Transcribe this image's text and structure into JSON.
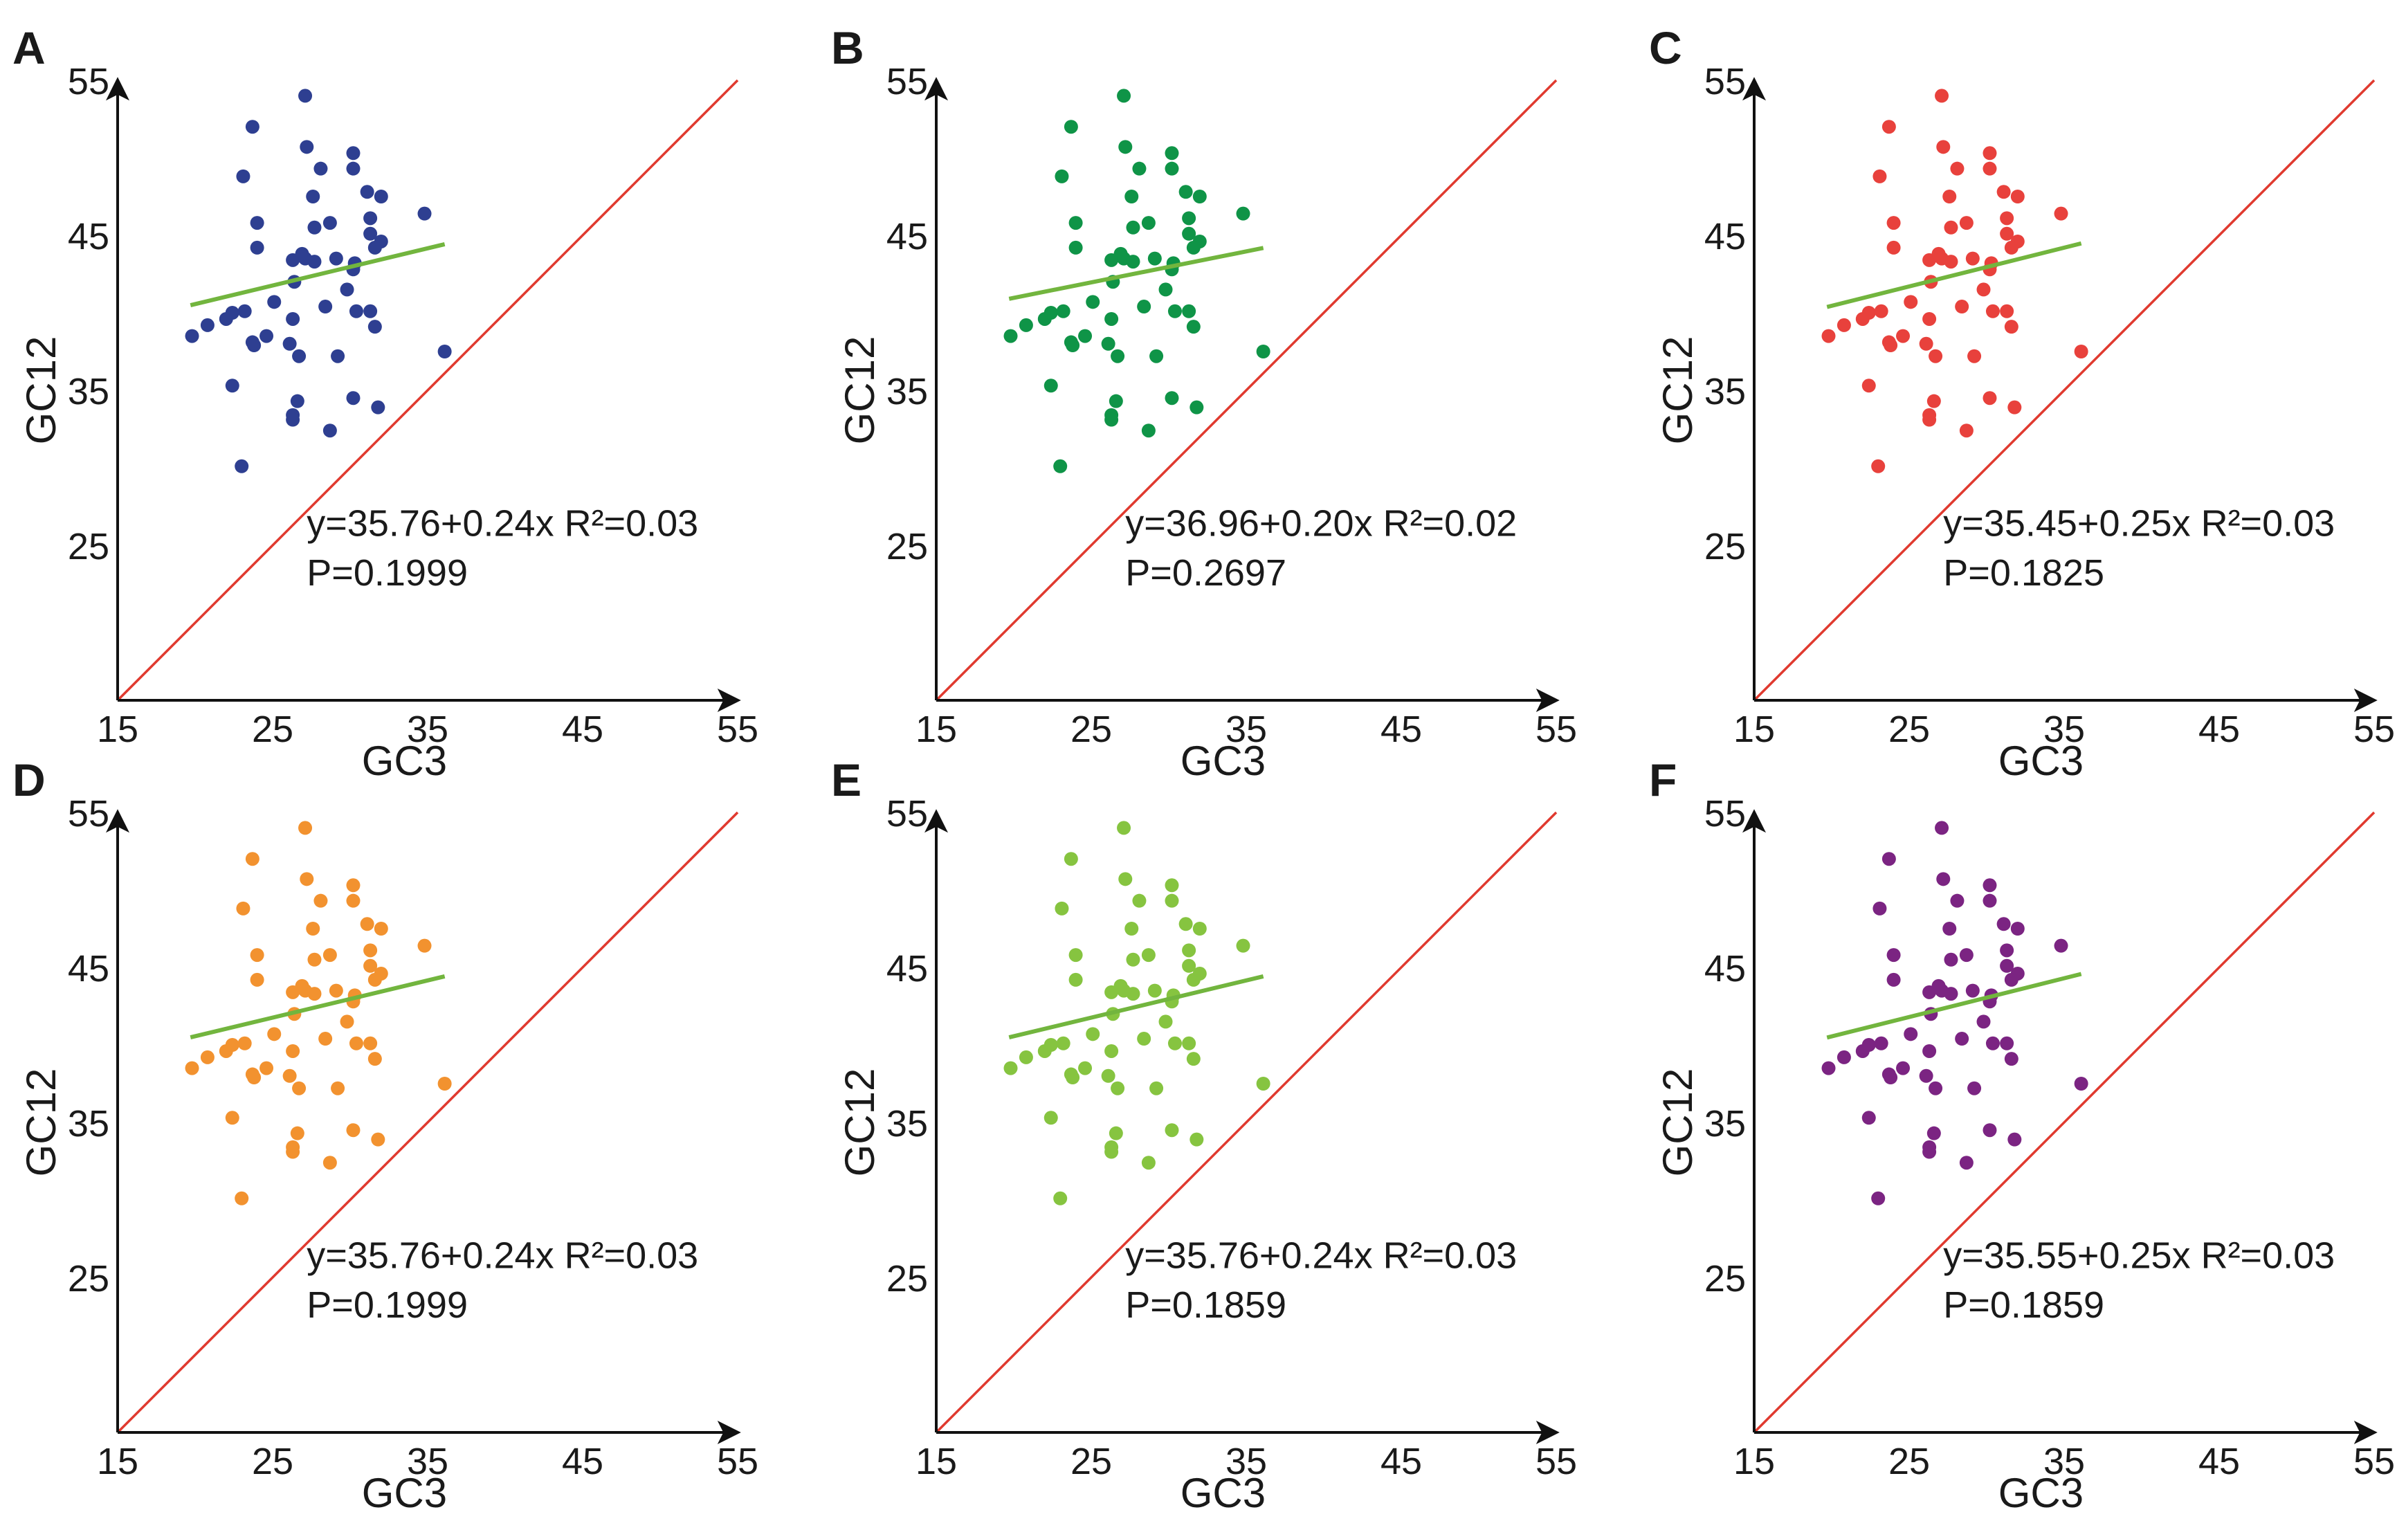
{
  "chart_data": [
    {
      "panel": "A",
      "type": "scatter",
      "xlabel": "GC3",
      "ylabel": "GC12",
      "xlim": [
        15,
        55
      ],
      "ylim": [
        15,
        55
      ],
      "xticks": [
        "15",
        "25",
        "35",
        "45",
        "55"
      ],
      "yticks": [
        "25",
        "35",
        "45",
        "55"
      ],
      "point_color": "#2e3f91",
      "regression": {
        "intercept": 35.76,
        "slope": 0.24,
        "x_range": [
          19.7,
          36.1
        ],
        "color": "#72b53e"
      },
      "diagonal_color": "#e03a2f",
      "equation": "y=35.76+0.24x R²=0.03",
      "p_value": "P=0.1999",
      "points": []
    },
    {
      "panel": "B",
      "type": "scatter",
      "xlabel": "GC3",
      "ylabel": "GC12",
      "xlim": [
        15,
        55
      ],
      "ylim": [
        15,
        55
      ],
      "xticks": [
        "15",
        "25",
        "35",
        "45",
        "55"
      ],
      "yticks": [
        "25",
        "35",
        "45",
        "55"
      ],
      "point_color": "#0f9447",
      "regression": {
        "intercept": 36.96,
        "slope": 0.2,
        "x_range": [
          19.7,
          36.1
        ],
        "color": "#72b53e"
      },
      "diagonal_color": "#e03a2f",
      "equation": "y=36.96+0.20x R²=0.02",
      "p_value": "P=0.2697",
      "points": []
    },
    {
      "panel": "C",
      "type": "scatter",
      "xlabel": "GC3",
      "ylabel": "GC12",
      "xlim": [
        15,
        55
      ],
      "ylim": [
        15,
        55
      ],
      "xticks": [
        "15",
        "25",
        "35",
        "45",
        "55"
      ],
      "yticks": [
        "25",
        "35",
        "45",
        "55"
      ],
      "point_color": "#e8413c",
      "regression": {
        "intercept": 35.45,
        "slope": 0.25,
        "x_range": [
          19.7,
          36.1
        ],
        "color": "#72b53e"
      },
      "diagonal_color": "#e03a2f",
      "equation": "y=35.45+0.25x R²=0.03",
      "p_value": "P=0.1825",
      "points": []
    },
    {
      "panel": "D",
      "type": "scatter",
      "xlabel": "GC3",
      "ylabel": "GC12",
      "xlim": [
        15,
        55
      ],
      "ylim": [
        15,
        55
      ],
      "xticks": [
        "15",
        "25",
        "35",
        "45",
        "55"
      ],
      "yticks": [
        "25",
        "35",
        "45",
        "55"
      ],
      "point_color": "#f2922f",
      "regression": {
        "intercept": 35.76,
        "slope": 0.24,
        "x_range": [
          19.7,
          36.1
        ],
        "color": "#72b53e"
      },
      "diagonal_color": "#e03a2f",
      "equation": "y=35.76+0.24x R²=0.03",
      "p_value": "P=0.1999",
      "points": []
    },
    {
      "panel": "E",
      "type": "scatter",
      "xlabel": "GC3",
      "ylabel": "GC12",
      "xlim": [
        15,
        55
      ],
      "ylim": [
        15,
        55
      ],
      "xticks": [
        "15",
        "25",
        "35",
        "45",
        "55"
      ],
      "yticks": [
        "25",
        "35",
        "45",
        "55"
      ],
      "point_color": "#86c440",
      "regression": {
        "intercept": 35.76,
        "slope": 0.24,
        "x_range": [
          19.7,
          36.1
        ],
        "color": "#72b53e"
      },
      "diagonal_color": "#e03a2f",
      "equation": "y=35.76+0.24x R²=0.03",
      "p_value": "P=0.1859",
      "points": []
    },
    {
      "panel": "F",
      "type": "scatter",
      "xlabel": "GC3",
      "ylabel": "GC12",
      "xlim": [
        15,
        55
      ],
      "ylim": [
        15,
        55
      ],
      "xticks": [
        "15",
        "25",
        "35",
        "45",
        "55"
      ],
      "yticks": [
        "25",
        "35",
        "45",
        "55"
      ],
      "point_color": "#7b2482",
      "regression": {
        "intercept": 35.55,
        "slope": 0.25,
        "x_range": [
          19.7,
          36.1
        ],
        "color": "#72b53e"
      },
      "diagonal_color": "#e03a2f",
      "equation": "y=35.55+0.25x R²=0.03",
      "p_value": "P=0.1859",
      "points": []
    }
  ],
  "shared_points": [
    [
      27.1,
      54.0
    ],
    [
      23.7,
      52.0
    ],
    [
      27.2,
      50.7
    ],
    [
      30.2,
      50.3
    ],
    [
      28.1,
      49.3
    ],
    [
      30.2,
      49.3
    ],
    [
      23.1,
      48.8
    ],
    [
      31.1,
      47.8
    ],
    [
      27.6,
      47.5
    ],
    [
      32.0,
      47.5
    ],
    [
      34.8,
      46.4
    ],
    [
      24.0,
      45.8
    ],
    [
      28.7,
      45.8
    ],
    [
      31.3,
      46.1
    ],
    [
      27.7,
      45.5
    ],
    [
      31.3,
      45.1
    ],
    [
      24.0,
      44.2
    ],
    [
      32.0,
      44.6
    ],
    [
      31.6,
      44.2
    ],
    [
      26.3,
      43.4
    ],
    [
      26.9,
      43.8
    ],
    [
      27.1,
      43.5
    ],
    [
      29.1,
      43.5
    ],
    [
      30.3,
      43.2
    ],
    [
      30.2,
      42.8
    ],
    [
      27.7,
      43.3
    ],
    [
      26.4,
      42.0
    ],
    [
      29.8,
      41.5
    ],
    [
      25.1,
      40.7
    ],
    [
      28.4,
      40.4
    ],
    [
      30.4,
      40.1
    ],
    [
      31.3,
      40.1
    ],
    [
      20.8,
      39.2
    ],
    [
      22.0,
      39.6
    ],
    [
      22.4,
      40.0
    ],
    [
      23.2,
      40.1
    ],
    [
      26.3,
      39.6
    ],
    [
      31.6,
      39.1
    ],
    [
      19.8,
      38.5
    ],
    [
      24.6,
      38.5
    ],
    [
      23.7,
      38.1
    ],
    [
      23.8,
      37.9
    ],
    [
      26.1,
      38.0
    ],
    [
      26.7,
      37.2
    ],
    [
      29.2,
      37.2
    ],
    [
      36.1,
      37.5
    ],
    [
      22.4,
      35.3
    ],
    [
      30.2,
      34.5
    ],
    [
      26.6,
      34.3
    ],
    [
      31.8,
      33.9
    ],
    [
      26.3,
      33.4
    ],
    [
      26.3,
      33.1
    ],
    [
      28.7,
      32.4
    ],
    [
      23.0,
      30.1
    ]
  ]
}
